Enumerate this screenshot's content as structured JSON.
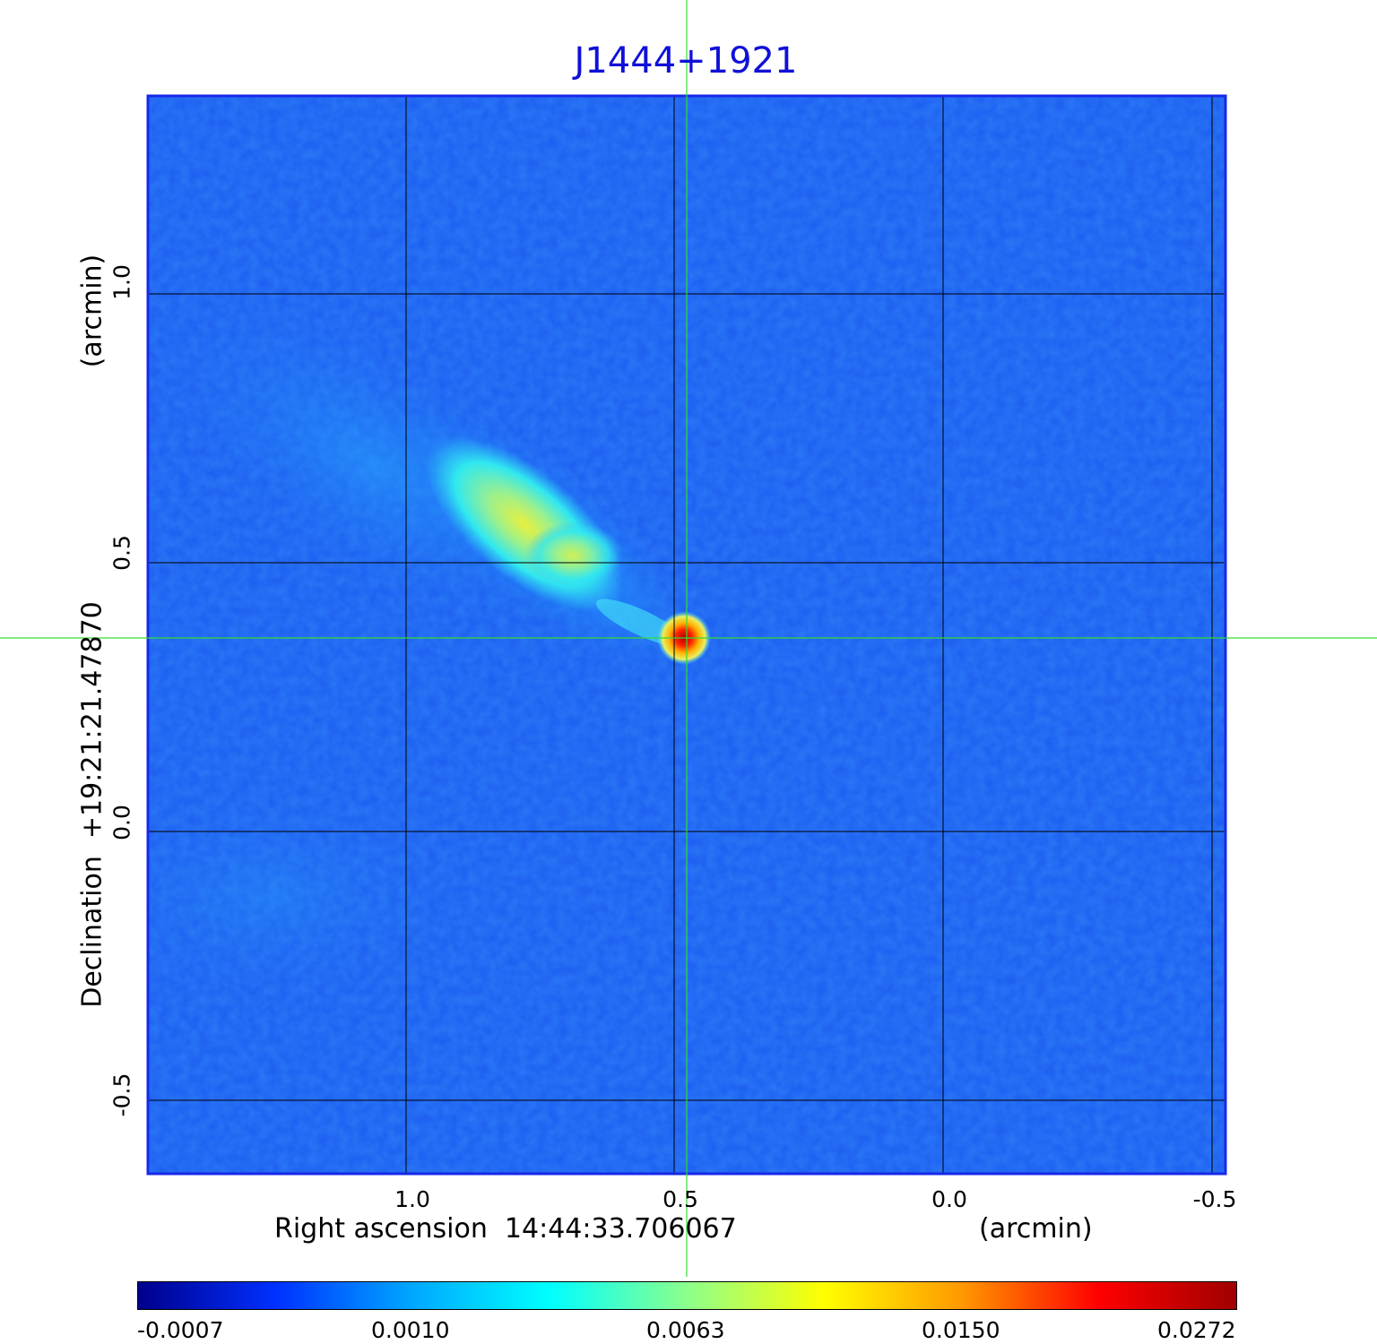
{
  "title": "J1444+1921",
  "x_axis": {
    "label": "Right ascension  14:44:33.706067",
    "unit": "(arcmin)",
    "ticks": [
      "1.0",
      "0.5",
      "0.0",
      "-0.5"
    ]
  },
  "y_axis": {
    "label": "Declination  +19:21:21.47870",
    "unit": "(arcmin)",
    "ticks": [
      "1.0",
      "0.5",
      "0.0",
      "-0.5"
    ]
  },
  "colorbar": {
    "ticks": [
      "-0.0007",
      "0.0010",
      "0.0063",
      "0.0150",
      "0.0272"
    ],
    "colormap": [
      "#00008c",
      "#0030ff",
      "#00a8ff",
      "#00ffff",
      "#8cff8c",
      "#ffff00",
      "#ff9800",
      "#ff0000",
      "#a00000"
    ]
  },
  "colors": {
    "background_map": "#1c5cf0",
    "title": "#1010d8",
    "crosshair": "#33dd33",
    "grid": "#000000"
  }
}
